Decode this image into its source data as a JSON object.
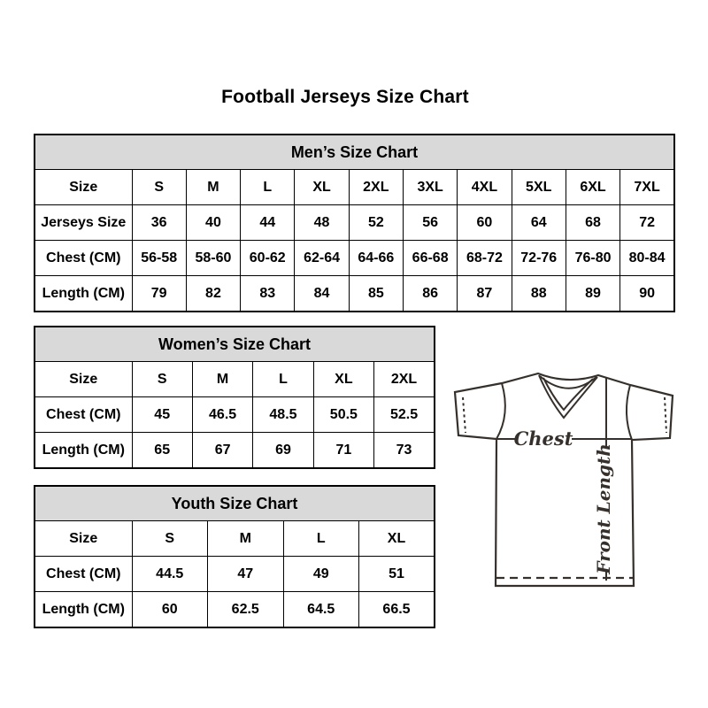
{
  "page": {
    "title": "Football Jerseys Size Chart"
  },
  "tables": {
    "mens": {
      "title": "Men’s Size Chart",
      "rows": [
        [
          "Size",
          "S",
          "M",
          "L",
          "XL",
          "2XL",
          "3XL",
          "4XL",
          "5XL",
          "6XL",
          "7XL"
        ],
        [
          "Jerseys Size",
          "36",
          "40",
          "44",
          "48",
          "52",
          "56",
          "60",
          "64",
          "68",
          "72"
        ],
        [
          "Chest (CM)",
          "56-58",
          "58-60",
          "60-62",
          "62-64",
          "64-66",
          "66-68",
          "68-72",
          "72-76",
          "76-80",
          "80-84"
        ],
        [
          "Length (CM)",
          "79",
          "82",
          "83",
          "84",
          "85",
          "86",
          "87",
          "88",
          "89",
          "90"
        ]
      ]
    },
    "womens": {
      "title": "Women’s Size Chart",
      "rows": [
        [
          "Size",
          "S",
          "M",
          "L",
          "XL",
          "2XL"
        ],
        [
          "Chest (CM)",
          "45",
          "46.5",
          "48.5",
          "50.5",
          "52.5"
        ],
        [
          "Length (CM)",
          "65",
          "67",
          "69",
          "71",
          "73"
        ]
      ]
    },
    "youth": {
      "title": "Youth Size Chart",
      "rows": [
        [
          "Size",
          "S",
          "M",
          "L",
          "XL"
        ],
        [
          "Chest (CM)",
          "44.5",
          "47",
          "49",
          "51"
        ],
        [
          "Length (CM)",
          "60",
          "62.5",
          "64.5",
          "66.5"
        ]
      ]
    }
  },
  "diagram": {
    "chest_label": "Chest",
    "front_length_label": "Front Length"
  },
  "colors": {
    "header_bg": "#d9d9d9",
    "table_border": "#000000",
    "text": "#000000",
    "diagram_line": "#35302b"
  }
}
